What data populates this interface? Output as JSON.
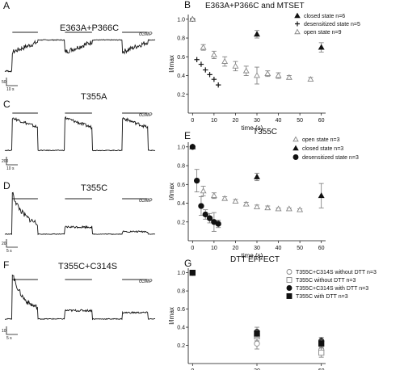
{
  "panel_labels": [
    "A",
    "B",
    "C",
    "E",
    "D",
    "F",
    "G"
  ],
  "traces": [
    {
      "panel": "A",
      "title": "E363A+P366C",
      "marker": "cGMP",
      "scale_y": "50",
      "scale_x": "10 s"
    },
    {
      "panel": "C",
      "title": "T355A",
      "marker": "cGMP",
      "scale_y": "200",
      "scale_x": "10 s"
    },
    {
      "panel": "D",
      "title": "T355C",
      "marker": "cGMP",
      "scale_y": "20",
      "scale_x": "5 s"
    },
    {
      "panel": "F",
      "title": "T355C+C314S",
      "marker": "cGMP",
      "scale_y": "10",
      "scale_x": "5 s"
    }
  ],
  "chart_data": [
    {
      "panel": "B",
      "type": "scatter",
      "title": "E363A+P366C and MTSET",
      "xlabel": "time (s)",
      "ylabel": "I/Imax",
      "xlim": [
        -2,
        62
      ],
      "ylim": [
        0,
        1.05
      ],
      "xticks": [
        0,
        10,
        20,
        30,
        40,
        50,
        60
      ],
      "yticks": [
        0.2,
        0.4,
        0.6,
        0.8,
        1.0
      ],
      "legend_position": "top-right",
      "series": [
        {
          "name": "closed state n=6",
          "marker": "filled-triangle",
          "x": [
            0,
            30,
            60
          ],
          "y": [
            1.0,
            0.84,
            0.7
          ],
          "err": [
            0.01,
            0.04,
            0.05
          ]
        },
        {
          "name": "desensitized state n=5",
          "marker": "plus",
          "x": [
            0,
            2,
            4,
            6,
            8,
            10,
            12
          ],
          "y": [
            1.0,
            0.57,
            0.52,
            0.46,
            0.41,
            0.36,
            0.3
          ],
          "err": [
            0,
            0,
            0,
            0,
            0,
            0,
            0
          ]
        },
        {
          "name": "open state n=9",
          "marker": "open-triangle",
          "x": [
            0,
            5,
            10,
            15,
            20,
            25,
            30,
            35,
            40,
            45,
            55
          ],
          "y": [
            1.0,
            0.7,
            0.62,
            0.55,
            0.5,
            0.45,
            0.4,
            0.42,
            0.4,
            0.38,
            0.36
          ],
          "err": [
            0,
            0.03,
            0.04,
            0.05,
            0.05,
            0.05,
            0.09,
            0.03,
            0.03,
            0.02,
            0.02
          ]
        }
      ]
    },
    {
      "panel": "E",
      "type": "scatter",
      "title": "T355C",
      "xlabel": "time (s)",
      "ylabel": "I/Imax",
      "xlim": [
        -2,
        62
      ],
      "ylim": [
        0,
        1.05
      ],
      "xticks": [
        0,
        10,
        20,
        30,
        40,
        50,
        60
      ],
      "yticks": [
        0.2,
        0.4,
        0.6,
        0.8,
        1.0
      ],
      "legend_position": "top-right",
      "series": [
        {
          "name": "open state n=3",
          "marker": "open-triangle",
          "x": [
            0,
            5,
            10,
            15,
            20,
            25,
            30,
            35,
            40,
            45,
            50
          ],
          "y": [
            1.0,
            0.53,
            0.48,
            0.45,
            0.42,
            0.39,
            0.36,
            0.35,
            0.34,
            0.34,
            0.33
          ],
          "err": [
            0,
            0.05,
            0.03,
            0.02,
            0.02,
            0.02,
            0.02,
            0.02,
            0.01,
            0.01,
            0.01
          ]
        },
        {
          "name": "closed state n=3",
          "marker": "filled-triangle",
          "x": [
            0,
            30,
            60
          ],
          "y": [
            1.0,
            0.68,
            0.48
          ],
          "err": [
            0.01,
            0.04,
            0.13
          ]
        },
        {
          "name": "desensitized state n=3",
          "marker": "filled-circle",
          "x": [
            0,
            2,
            4,
            6,
            8,
            10,
            12
          ],
          "y": [
            1.0,
            0.64,
            0.37,
            0.28,
            0.24,
            0.2,
            0.18
          ],
          "err": [
            0,
            0.12,
            0.1,
            0.05,
            0.05,
            0.1,
            0.04
          ]
        }
      ]
    },
    {
      "panel": "G",
      "type": "scatter",
      "title": "DTT EFFECT",
      "xlabel": "time (s)",
      "ylabel": "I/Imax",
      "xlim": [
        -2,
        62
      ],
      "ylim": [
        0,
        1.05
      ],
      "xticks": [
        0,
        30,
        60
      ],
      "yticks": [
        0.2,
        0.4,
        0.6,
        0.8,
        1.0
      ],
      "legend_position": "top-right",
      "series": [
        {
          "name": "T355C+C314S without DTT n=3",
          "marker": "open-circle",
          "x": [
            0,
            30,
            60
          ],
          "y": [
            1.0,
            0.22,
            0.15
          ],
          "err": [
            0,
            0.06,
            0.05
          ]
        },
        {
          "name": "T355C without DTT n=3",
          "marker": "open-square",
          "x": [
            0,
            30,
            60
          ],
          "y": [
            1.0,
            0.3,
            0.12
          ],
          "err": [
            0,
            0.05,
            0.05
          ]
        },
        {
          "name": "T355C+C314S with DTT n=3",
          "marker": "filled-circle",
          "x": [
            0,
            30,
            60
          ],
          "y": [
            1.0,
            0.35,
            0.25
          ],
          "err": [
            0,
            0.05,
            0.04
          ]
        },
        {
          "name": "T355C with DTT n=3",
          "marker": "filled-square",
          "x": [
            0,
            30,
            60
          ],
          "y": [
            1.0,
            0.33,
            0.22
          ],
          "err": [
            0,
            0.04,
            0.04
          ]
        }
      ]
    }
  ]
}
